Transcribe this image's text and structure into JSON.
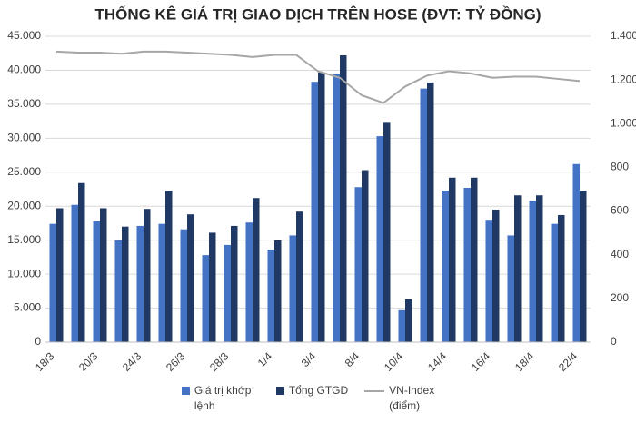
{
  "chart_data": {
    "type": "bar",
    "title": "THỐNG KÊ GIÁ TRỊ GIAO DỊCH TRÊN HOSE (ĐVT: TỶ ĐỒNG)",
    "categories": [
      "18/3",
      null,
      "20/3",
      null,
      "24/3",
      null,
      "26/3",
      null,
      "28/3",
      null,
      "1/4",
      null,
      "3/4",
      null,
      "8/4",
      null,
      "10/4",
      null,
      "14/4",
      null,
      "16/4",
      null,
      "18/4",
      null,
      "22/4"
    ],
    "series": [
      {
        "name": "Giá trị khớp lệnh",
        "color": "#4472c4",
        "values": [
          17400,
          20200,
          17800,
          15000,
          17100,
          17400,
          16600,
          12800,
          14300,
          17600,
          13600,
          15700,
          38300,
          39500,
          22800,
          30300,
          4700,
          37300,
          22300,
          22700,
          18000,
          15700,
          20800,
          17400,
          26200
        ]
      },
      {
        "name": "Tổng GTGD",
        "color": "#1f3864",
        "values": [
          19700,
          23400,
          19700,
          17000,
          19600,
          22300,
          18800,
          16100,
          17100,
          21200,
          15000,
          19200,
          39700,
          42200,
          25300,
          32400,
          6300,
          38200,
          24200,
          24200,
          19500,
          21600,
          21600,
          18700,
          22300
        ]
      },
      {
        "name": "VN-Index (điểm)",
        "color": "#a6a6a6",
        "type": "line",
        "axis": "y2",
        "values": [
          1330,
          1325,
          1325,
          1320,
          1330,
          1330,
          1325,
          1320,
          1315,
          1305,
          1315,
          1315,
          1240,
          1210,
          1130,
          1095,
          1170,
          1220,
          1240,
          1230,
          1210,
          1215,
          1215,
          1205,
          1195
        ]
      }
    ],
    "ylim": [
      0,
      45000
    ],
    "yticks": [
      0,
      {
        "value": 5000,
        "label": "5.000"
      },
      {
        "value": 10000,
        "label": "10.000"
      },
      {
        "value": 15000,
        "label": "15.000"
      },
      {
        "value": 20000,
        "label": "20.000"
      },
      {
        "value": 25000,
        "label": "25.000"
      },
      {
        "value": 30000,
        "label": "30.000"
      },
      {
        "value": 35000,
        "label": "35.000"
      },
      {
        "value": 40000,
        "label": "40.000"
      },
      {
        "value": 45000,
        "label": "45.000"
      }
    ],
    "y2lim": [
      0,
      1400
    ],
    "y2ticks": [
      0,
      200,
      400,
      600,
      800,
      {
        "value": 1000,
        "label": "1.000"
      },
      {
        "value": 1200,
        "label": "1.200"
      },
      {
        "value": 1400,
        "label": "1.400"
      }
    ],
    "grid": true
  }
}
